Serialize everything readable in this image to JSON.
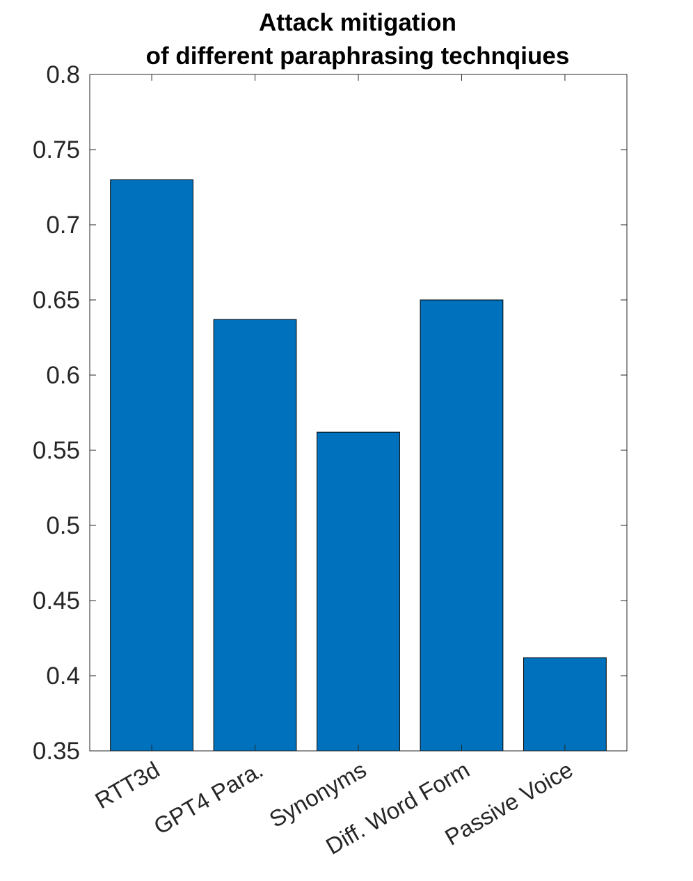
{
  "chart_data": {
    "type": "bar",
    "title": [
      "Attack mitigation",
      "of different paraphrasing technqiues"
    ],
    "xlabel": "",
    "ylabel": "",
    "categories": [
      "RTT3d",
      "GPT4 Para.",
      "Synonyms",
      "Diff. Word Form",
      "Passive Voice"
    ],
    "values": [
      0.73,
      0.637,
      0.562,
      0.65,
      0.412
    ],
    "ylim": [
      0.35,
      0.8
    ],
    "yticks": [
      0.35,
      0.4,
      0.45,
      0.5,
      0.55,
      0.6,
      0.65,
      0.7,
      0.75,
      0.8
    ],
    "ytick_labels": [
      "0.35",
      "0.4",
      "0.45",
      "0.5",
      "0.55",
      "0.6",
      "0.65",
      "0.7",
      "0.75",
      "0.8"
    ],
    "grid": false,
    "legend": "none",
    "colors": {
      "bar": "#0072bd",
      "bar_edge": "#000000",
      "axis": "#262626"
    }
  }
}
